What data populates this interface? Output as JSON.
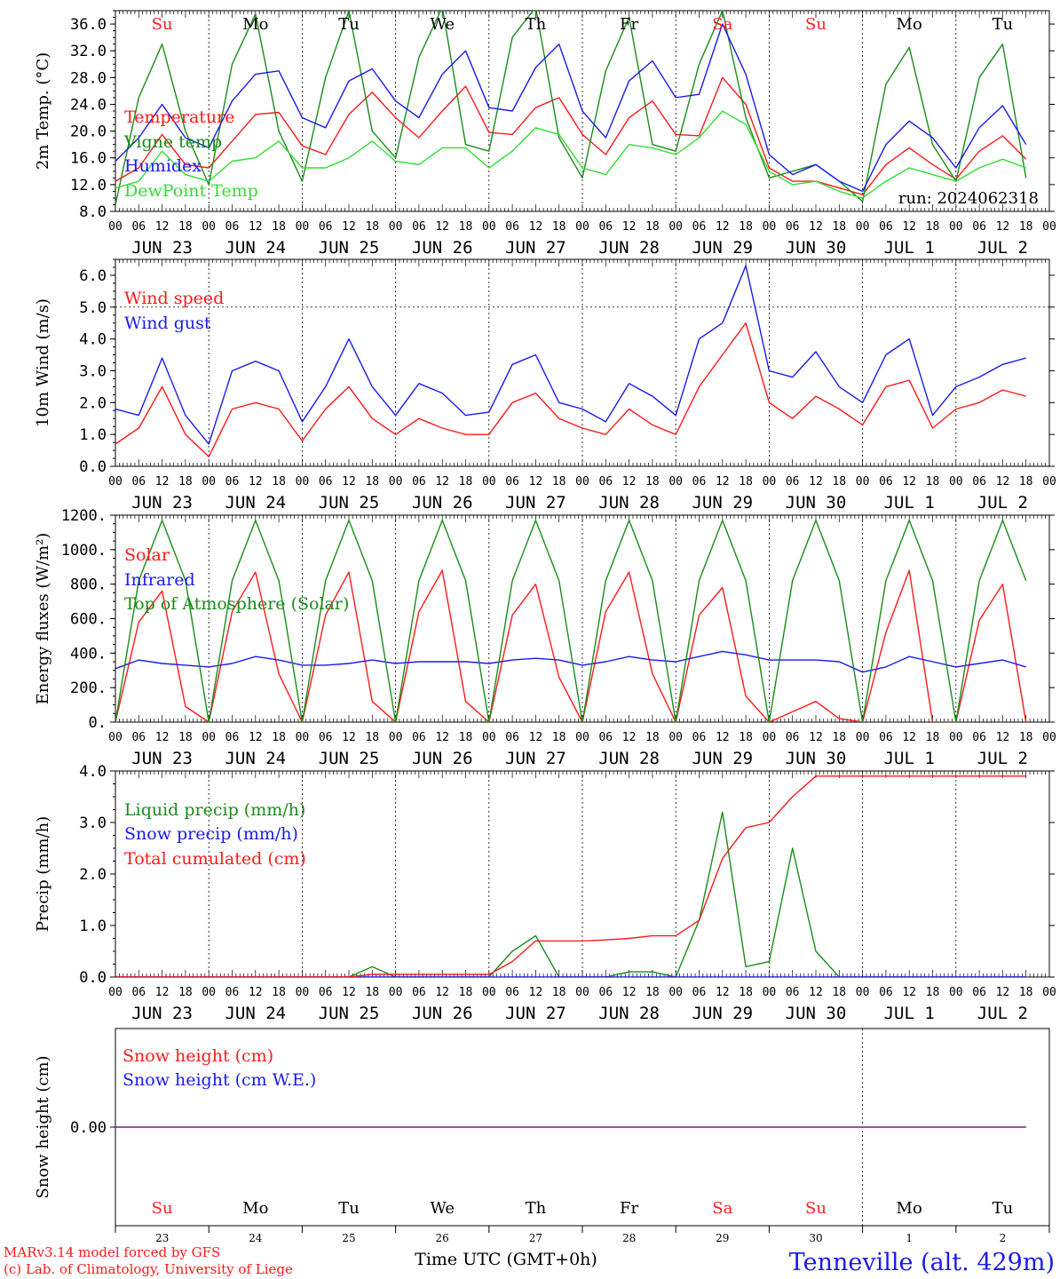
{
  "station": "Tenneville (alt. 429m)",
  "run_label": "run: 2024062318",
  "footer": {
    "credit_line1": "MARv3.14 model forced by GFS",
    "credit_line2": "(c) Lab. of Climatology, University of Liege",
    "time_label": "Time UTC (GMT+0h)"
  },
  "day_names": [
    "Su",
    "Mo",
    "Tu",
    "We",
    "Th",
    "Fr",
    "Sa",
    "Su",
    "Mo",
    "Tu"
  ],
  "day_name_colors": [
    "#ff2020",
    "#000000",
    "#000000",
    "#000000",
    "#000000",
    "#000000",
    "#ff2020",
    "#ff2020",
    "#000000",
    "#000000"
  ],
  "date_labels": [
    "JUN 23",
    "JUN 24",
    "JUN 25",
    "JUN 26",
    "JUN 27",
    "JUN 28",
    "JUN 29",
    "JUN 30",
    "JUL  1",
    "JUL  2"
  ],
  "day_numbers": [
    "23",
    "24",
    "25",
    "26",
    "27",
    "28",
    "29",
    "30",
    "1",
    "2"
  ],
  "hour_ticks": [
    "00",
    "06",
    "12",
    "18"
  ],
  "colors": {
    "red": "#ff1a1a",
    "green": "#1a8c1a",
    "blue": "#1a1aee",
    "lightgreen": "#33dd33",
    "purple": "#8040a0"
  },
  "chart_data": [
    {
      "type": "line",
      "ylabel": "2m Temp. (°C)",
      "ylim": [
        8,
        38
      ],
      "yticks": [
        "8.0",
        "12.0",
        "16.0",
        "20.0",
        "24.0",
        "28.0",
        "32.0",
        "36.0"
      ],
      "x_start": "2024-06-23 00 UTC",
      "x_step_hours": 6,
      "series": [
        {
          "name": "Temperature",
          "color": "#ff1a1a",
          "values": [
            12.5,
            14.5,
            19.5,
            15.0,
            14.5,
            18.5,
            22.5,
            22.8,
            17.8,
            16.5,
            22.5,
            25.8,
            22.0,
            19.0,
            23.0,
            26.7,
            19.8,
            19.5,
            23.5,
            25.0,
            19.5,
            16.5,
            22.0,
            24.5,
            19.5,
            19.3,
            28.0,
            24.0,
            14.5,
            12.5,
            12.5,
            11.5,
            10.5,
            15.0,
            17.5,
            15.0,
            12.8,
            17.0,
            19.3,
            15.8
          ]
        },
        {
          "name": "Vigne temp",
          "color": "#1a8c1a",
          "values": [
            9.0,
            25.0,
            33.0,
            20.0,
            12.0,
            30.0,
            37.5,
            20.0,
            12.5,
            28.0,
            38.0,
            20.0,
            16.0,
            31.0,
            38.5,
            18.0,
            17.0,
            34.0,
            38.5,
            19.0,
            13.0,
            29.0,
            37.0,
            18.0,
            17.0,
            30.0,
            38.0,
            22.0,
            13.0,
            14.0,
            15.0,
            12.5,
            9.5,
            27.0,
            32.5,
            18.0,
            12.5,
            28.0,
            33.0,
            13.0
          ]
        },
        {
          "name": "Humidex",
          "color": "#1a1aee",
          "values": [
            15.5,
            19.0,
            24.0,
            19.0,
            17.5,
            24.5,
            28.5,
            29.0,
            22.0,
            20.5,
            27.5,
            29.3,
            24.5,
            22.0,
            28.5,
            32.0,
            23.5,
            23.0,
            29.5,
            33.0,
            23.0,
            19.0,
            27.5,
            30.5,
            25.0,
            25.5,
            36.0,
            28.5,
            16.5,
            13.5,
            15.0,
            12.5,
            11.0,
            18.0,
            21.5,
            19.0,
            14.5,
            20.5,
            23.8,
            18.0
          ]
        },
        {
          "name": "DewPoint Temp",
          "color": "#33dd33",
          "values": [
            11.5,
            12.5,
            17.0,
            13.5,
            12.5,
            15.5,
            16.0,
            18.5,
            14.5,
            14.5,
            16.0,
            18.5,
            15.5,
            15.0,
            17.5,
            17.5,
            14.5,
            17.0,
            20.5,
            19.5,
            14.5,
            13.5,
            18.0,
            17.5,
            16.5,
            19.0,
            23.0,
            21.0,
            14.0,
            12.0,
            12.5,
            11.0,
            10.0,
            12.5,
            14.5,
            13.5,
            12.5,
            14.5,
            15.8,
            14.5
          ]
        }
      ]
    },
    {
      "type": "line",
      "ylabel": "10m Wind (m/s)",
      "ylim": [
        0,
        6.5
      ],
      "yticks": [
        "0.0",
        "1.0",
        "2.0",
        "3.0",
        "4.0",
        "5.0",
        "6.0"
      ],
      "reference_line": 5.0,
      "x_start": "2024-06-23 00 UTC",
      "x_step_hours": 6,
      "series": [
        {
          "name": "Wind speed",
          "color": "#ff1a1a",
          "values": [
            0.7,
            1.2,
            2.5,
            1.0,
            0.3,
            1.8,
            2.0,
            1.8,
            0.8,
            1.8,
            2.5,
            1.5,
            1.0,
            1.5,
            1.2,
            1.0,
            1.0,
            2.0,
            2.3,
            1.5,
            1.2,
            1.0,
            1.8,
            1.3,
            1.0,
            2.5,
            3.5,
            4.5,
            2.0,
            1.5,
            2.2,
            1.8,
            1.3,
            2.5,
            2.7,
            1.2,
            1.8,
            2.0,
            2.4,
            2.2
          ]
        },
        {
          "name": "Wind gust",
          "color": "#1a1aee",
          "values": [
            1.8,
            1.6,
            3.4,
            1.6,
            0.7,
            3.0,
            3.3,
            3.0,
            1.4,
            2.5,
            4.0,
            2.5,
            1.6,
            2.6,
            2.3,
            1.6,
            1.7,
            3.2,
            3.5,
            2.0,
            1.8,
            1.4,
            2.6,
            2.2,
            1.6,
            4.0,
            4.5,
            6.3,
            3.0,
            2.8,
            3.6,
            2.5,
            2.0,
            3.5,
            4.0,
            1.6,
            2.5,
            2.8,
            3.2,
            3.4
          ]
        }
      ]
    },
    {
      "type": "line",
      "ylabel": "Energy fluxes (W/m²)",
      "ylim": [
        0,
        1200
      ],
      "yticks": [
        "0.",
        "200.",
        "400.",
        "600.",
        "800.",
        "1000.",
        "1200."
      ],
      "x_start": "2024-06-23 00 UTC",
      "x_step_hours": 6,
      "series": [
        {
          "name": "Solar",
          "color": "#ff1a1a",
          "values": [
            0,
            580,
            760,
            90,
            0,
            640,
            870,
            280,
            0,
            620,
            870,
            120,
            0,
            640,
            880,
            120,
            0,
            620,
            800,
            260,
            0,
            640,
            870,
            280,
            0,
            620,
            780,
            150,
            0,
            60,
            120,
            20,
            0,
            520,
            880,
            0,
            0,
            590,
            800,
            0
          ]
        },
        {
          "name": "Infrared",
          "color": "#1a1aee",
          "values": [
            310,
            360,
            340,
            330,
            320,
            340,
            380,
            360,
            330,
            330,
            340,
            360,
            340,
            350,
            350,
            350,
            340,
            360,
            370,
            360,
            330,
            350,
            380,
            360,
            350,
            380,
            410,
            390,
            360,
            360,
            360,
            350,
            290,
            320,
            380,
            350,
            320,
            340,
            360,
            320
          ]
        },
        {
          "name": "Top of Atmosphere (Solar)",
          "color": "#1a8c1a",
          "values": [
            0,
            820,
            1170,
            820,
            0,
            820,
            1170,
            820,
            0,
            820,
            1170,
            820,
            0,
            820,
            1170,
            820,
            0,
            820,
            1170,
            820,
            0,
            820,
            1170,
            820,
            0,
            820,
            1170,
            820,
            0,
            820,
            1170,
            820,
            0,
            820,
            1170,
            820,
            0,
            820,
            1170,
            820
          ]
        }
      ]
    },
    {
      "type": "line",
      "ylabel": "Precip (mm/h)",
      "ylim": [
        0,
        4
      ],
      "yticks": [
        "0.0",
        "1.0",
        "2.0",
        "3.0",
        "4.0"
      ],
      "x_start": "2024-06-23 00 UTC",
      "x_step_hours": 6,
      "series": [
        {
          "name": "Liquid precip (mm/h)",
          "color": "#1a8c1a",
          "values": [
            0,
            0,
            0,
            0,
            0,
            0,
            0,
            0,
            0,
            0,
            0,
            0.2,
            0,
            0,
            0,
            0,
            0,
            0.5,
            0.8,
            0,
            0,
            0,
            0.1,
            0.1,
            0,
            1.1,
            3.2,
            0.2,
            0.3,
            2.5,
            0.5,
            0,
            0,
            0,
            0,
            0,
            0,
            0,
            0,
            0
          ]
        },
        {
          "name": "Snow precip (mm/h)",
          "color": "#1a1aee",
          "values": [
            0,
            0,
            0,
            0,
            0,
            0,
            0,
            0,
            0,
            0,
            0,
            0,
            0,
            0,
            0,
            0,
            0,
            0,
            0,
            0,
            0,
            0,
            0,
            0,
            0,
            0,
            0,
            0,
            0,
            0,
            0,
            0,
            0,
            0,
            0,
            0,
            0,
            0,
            0,
            0
          ]
        },
        {
          "name": "Total cumulated (cm)",
          "color": "#ff1a1a",
          "values": [
            0,
            0,
            0,
            0,
            0,
            0,
            0,
            0,
            0,
            0,
            0,
            0.05,
            0.05,
            0.05,
            0.05,
            0.05,
            0.05,
            0.3,
            0.7,
            0.7,
            0.7,
            0.72,
            0.75,
            0.8,
            0.8,
            1.1,
            2.3,
            2.9,
            3.0,
            3.5,
            3.9,
            3.9,
            3.9,
            3.9,
            3.9,
            3.9,
            3.9,
            3.9,
            3.9,
            3.9
          ]
        }
      ]
    },
    {
      "type": "line",
      "ylabel": "Snow height (cm)",
      "yticks": [
        "0.00"
      ],
      "x_start": "2024-06-23 00 UTC",
      "x_step_hours": 6,
      "series": [
        {
          "name": "Snow height (cm)",
          "color": "#ff1a1a",
          "values": [
            0,
            0,
            0,
            0,
            0,
            0,
            0,
            0,
            0,
            0,
            0,
            0,
            0,
            0,
            0,
            0,
            0,
            0,
            0,
            0,
            0,
            0,
            0,
            0,
            0,
            0,
            0,
            0,
            0,
            0,
            0,
            0,
            0,
            0,
            0,
            0,
            0,
            0,
            0,
            0
          ]
        },
        {
          "name": "Snow height (cm W.E.)",
          "color": "#1a1aee",
          "values": [
            0,
            0,
            0,
            0,
            0,
            0,
            0,
            0,
            0,
            0,
            0,
            0,
            0,
            0,
            0,
            0,
            0,
            0,
            0,
            0,
            0,
            0,
            0,
            0,
            0,
            0,
            0,
            0,
            0,
            0,
            0,
            0,
            0,
            0,
            0,
            0,
            0,
            0,
            0,
            0
          ]
        }
      ]
    }
  ]
}
